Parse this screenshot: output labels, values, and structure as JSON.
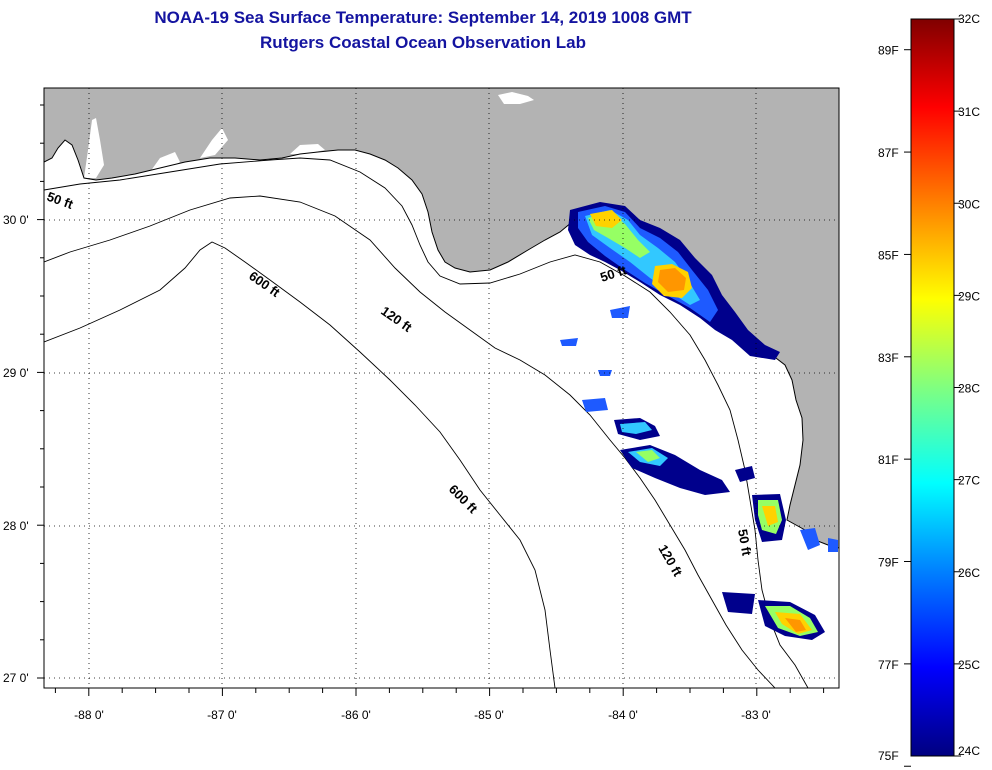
{
  "title": {
    "line1": "NOAA-19 Sea Surface Temperature:  September 14, 2019 1008 GMT",
    "line2": "Rutgers Coastal Ocean Observation Lab"
  },
  "map": {
    "longitude_labels": [
      "-88 0'",
      "-87 0'",
      "-86 0'",
      "-85 0'",
      "-84 0'",
      "-83 0'"
    ],
    "latitude_labels": [
      "30 0'",
      "29 0'",
      "28 0'",
      "27 0'"
    ],
    "contour_labels": [
      "50 ft",
      "600 ft",
      "120 ft",
      "50 ft",
      "600 ft",
      "120 ft",
      "50 ft"
    ],
    "colors": {
      "land": "#b3b3b3",
      "ocean": "#ffffff",
      "coastline": "#000000",
      "grid": "#000000"
    }
  },
  "colorbar": {
    "celsius_labels": [
      "32C",
      "31C",
      "30C",
      "29C",
      "28C",
      "27C",
      "26C",
      "25C",
      "24C"
    ],
    "fahrenheit_labels": [
      "89F",
      "87F",
      "85F",
      "83F",
      "81F",
      "79F",
      "77F",
      "75F"
    ],
    "gradient": [
      "#000080",
      "#0000ff",
      "#0080ff",
      "#00ffff",
      "#80ff80",
      "#ffff00",
      "#ff8000",
      "#ff0000",
      "#800000"
    ]
  }
}
